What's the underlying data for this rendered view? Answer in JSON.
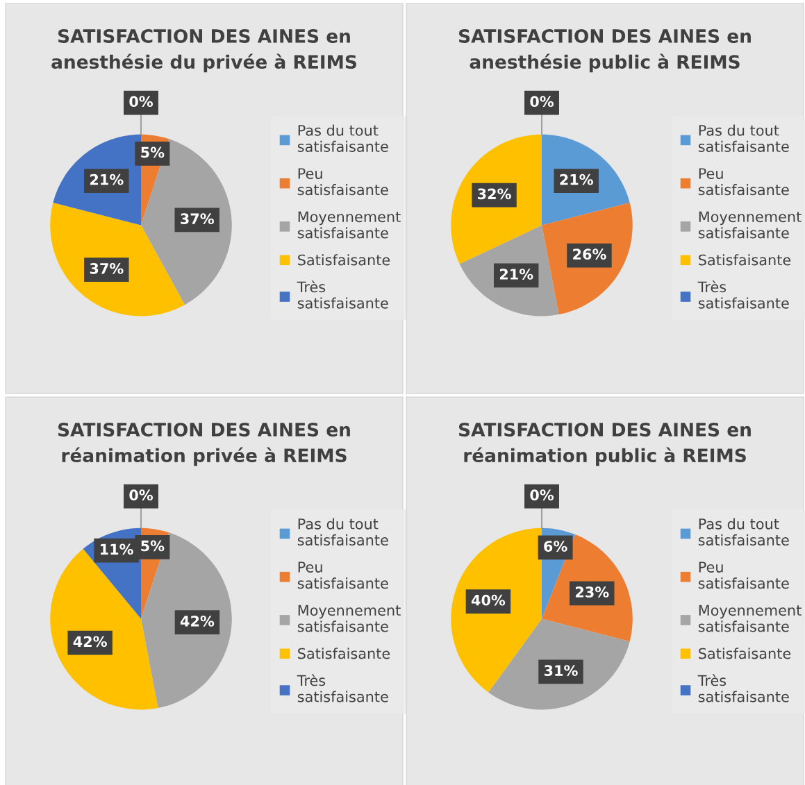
{
  "chart_data": [
    {
      "type": "pie",
      "title": "SATISFACTION DES AINES en\nanesthésie du privée à REIMS",
      "categories": [
        "Pas du tout satisfaisante",
        "Peu satisfaisante",
        "Moyennement satisfaisante",
        "Satisfaisante",
        "Très satisfaisante"
      ],
      "values": [
        0,
        5,
        37,
        37,
        21
      ],
      "value_labels": [
        "0%",
        "5%",
        "37%",
        "37%",
        "21%"
      ],
      "colors": [
        "#5b9bd5",
        "#ed7d31",
        "#a5a5a5",
        "#ffc000",
        "#4472c4"
      ],
      "legend": "right"
    },
    {
      "type": "pie",
      "title": "SATISFACTION DES AINES en\nanesthésie public à REIMS",
      "categories": [
        "Pas du tout satisfaisante",
        "Peu satisfaisante",
        "Moyennement satisfaisante",
        "Satisfaisante",
        "Très satisfaisante"
      ],
      "values": [
        21,
        26,
        21,
        32,
        0
      ],
      "value_labels": [
        "21%",
        "26%",
        "21%",
        "32%",
        "0%"
      ],
      "colors": [
        "#5b9bd5",
        "#ed7d31",
        "#a5a5a5",
        "#ffc000",
        "#4472c4"
      ],
      "legend": "right"
    },
    {
      "type": "pie",
      "title": "SATISFACTION DES AINES en\nréanimation privée à REIMS",
      "categories": [
        "Pas du tout satisfaisante",
        "Peu satisfaisante",
        "Moyennement satisfaisante",
        "Satisfaisante",
        "Très satisfaisante"
      ],
      "values": [
        0,
        5,
        42,
        42,
        11
      ],
      "value_labels": [
        "0%",
        "5%",
        "42%",
        "42%",
        "11%"
      ],
      "colors": [
        "#5b9bd5",
        "#ed7d31",
        "#a5a5a5",
        "#ffc000",
        "#4472c4"
      ],
      "legend": "right"
    },
    {
      "type": "pie",
      "title": "SATISFACTION DES AINES en\nréanimation public à REIMS",
      "categories": [
        "Pas du tout satisfaisante",
        "Peu satisfaisante",
        "Moyennement satisfaisante",
        "Satisfaisante",
        "Très satisfaisante"
      ],
      "values": [
        6,
        23,
        31,
        40,
        0
      ],
      "value_labels": [
        "6%",
        "23%",
        "31%",
        "40%",
        "0%"
      ],
      "colors": [
        "#5b9bd5",
        "#ed7d31",
        "#a5a5a5",
        "#ffc000",
        "#4472c4"
      ],
      "legend": "right"
    }
  ]
}
